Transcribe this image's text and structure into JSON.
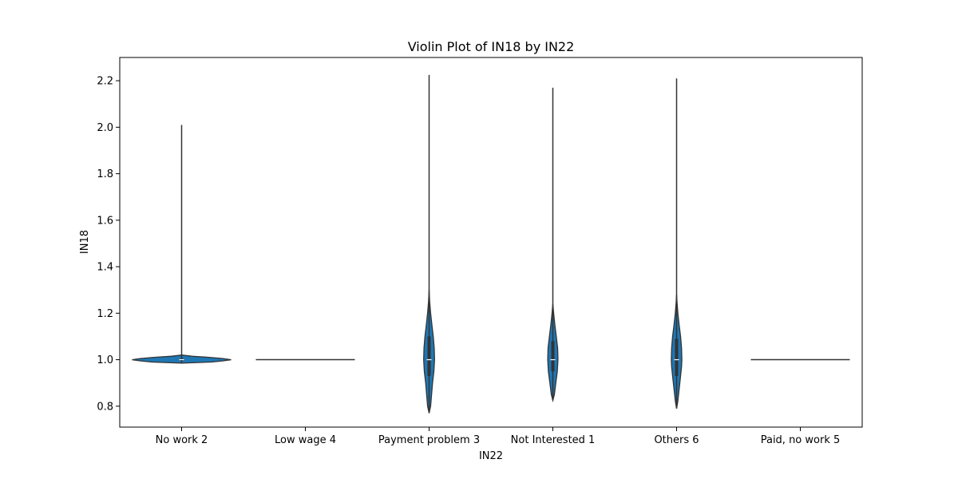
{
  "chart_data": {
    "type": "violin",
    "title": "Violin Plot of IN18 by IN22",
    "xlabel": "IN22",
    "ylabel": "IN18",
    "ylim": [
      0.71,
      2.3
    ],
    "yticks": [
      0.8,
      1.0,
      1.2,
      1.4,
      1.6,
      1.8,
      2.0,
      2.2
    ],
    "ytick_labels": [
      "0.8",
      "1.0",
      "1.2",
      "1.4",
      "1.6",
      "1.8",
      "2.0",
      "2.2"
    ],
    "grid": false,
    "fill_color": "#1f77b4",
    "line_color": "#333333",
    "categories": [
      "No work 2",
      "Low wage 4",
      "Payment problem 3",
      "Not Interested 1",
      "Others 6",
      "Paid, no work 5"
    ],
    "violins": [
      {
        "category": "No work 2",
        "min": 0.985,
        "max": 2.01,
        "median": 1.0,
        "q1": 0.995,
        "q3": 1.005,
        "profile": [
          [
            0.985,
            0.0
          ],
          [
            0.99,
            0.3
          ],
          [
            0.995,
            0.42
          ],
          [
            1.0,
            0.5
          ],
          [
            1.005,
            0.42
          ],
          [
            1.01,
            0.28
          ],
          [
            1.015,
            0.1
          ],
          [
            1.02,
            0.0
          ]
        ]
      },
      {
        "category": "Low wage 4",
        "min": 1.0,
        "max": 1.0,
        "median": 1.0,
        "flat_width": 0.8
      },
      {
        "category": "Payment problem 3",
        "min": 0.77,
        "max": 2.225,
        "median": 1.0,
        "q1": 0.93,
        "q3": 1.1,
        "profile": [
          [
            0.77,
            0.0
          ],
          [
            0.8,
            0.015
          ],
          [
            0.85,
            0.025
          ],
          [
            0.9,
            0.035
          ],
          [
            0.95,
            0.048
          ],
          [
            1.0,
            0.055
          ],
          [
            1.05,
            0.052
          ],
          [
            1.1,
            0.042
          ],
          [
            1.15,
            0.028
          ],
          [
            1.2,
            0.015
          ],
          [
            1.25,
            0.006
          ],
          [
            1.3,
            0.0
          ]
        ]
      },
      {
        "category": "Not Interested 1",
        "min": 0.825,
        "max": 2.17,
        "median": 1.0,
        "q1": 0.95,
        "q3": 1.08,
        "profile": [
          [
            0.825,
            0.0
          ],
          [
            0.85,
            0.015
          ],
          [
            0.9,
            0.03
          ],
          [
            0.95,
            0.045
          ],
          [
            1.0,
            0.052
          ],
          [
            1.05,
            0.048
          ],
          [
            1.1,
            0.035
          ],
          [
            1.15,
            0.02
          ],
          [
            1.2,
            0.008
          ],
          [
            1.24,
            0.0
          ]
        ]
      },
      {
        "category": "Others 6",
        "min": 0.79,
        "max": 2.21,
        "median": 1.0,
        "q1": 0.93,
        "q3": 1.09,
        "profile": [
          [
            0.79,
            0.0
          ],
          [
            0.82,
            0.012
          ],
          [
            0.87,
            0.025
          ],
          [
            0.92,
            0.038
          ],
          [
            0.97,
            0.05
          ],
          [
            1.0,
            0.053
          ],
          [
            1.05,
            0.05
          ],
          [
            1.1,
            0.04
          ],
          [
            1.15,
            0.026
          ],
          [
            1.2,
            0.013
          ],
          [
            1.25,
            0.004
          ],
          [
            1.28,
            0.0
          ]
        ]
      },
      {
        "category": "Paid, no work 5",
        "min": 1.0,
        "max": 1.0,
        "median": 1.0,
        "flat_width": 0.8
      }
    ]
  }
}
